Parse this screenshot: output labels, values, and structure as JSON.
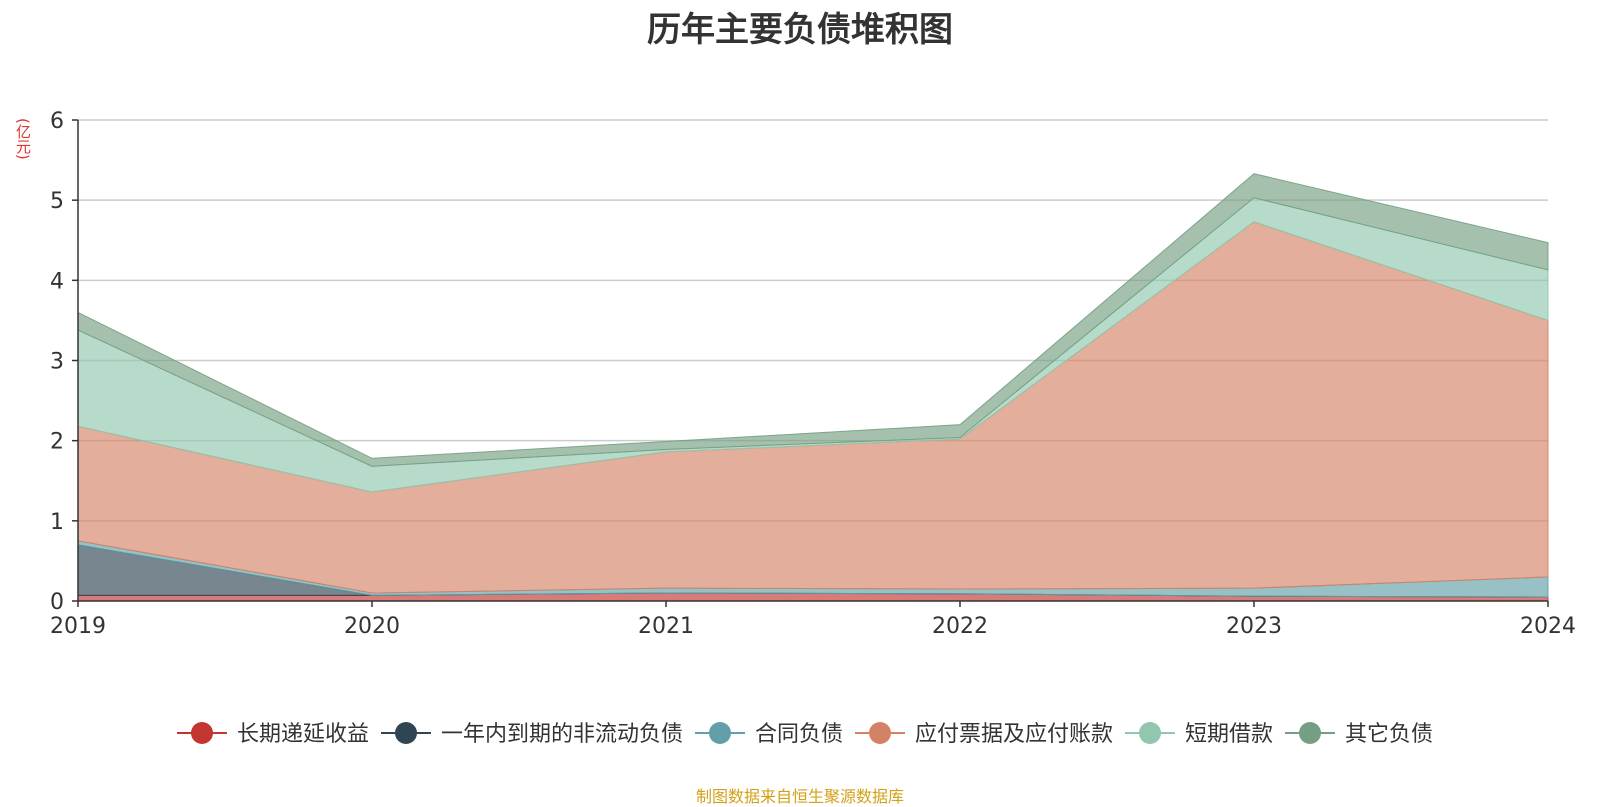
{
  "chart_data": {
    "type": "area",
    "title": "历年主要负债堆积图",
    "unit": "(亿元)",
    "source": "制图数据来自恒生聚源数据库",
    "x": [
      "2019",
      "2020",
      "2021",
      "2022",
      "2023",
      "2024"
    ],
    "ylim": [
      0,
      6
    ],
    "yticks": [
      "0",
      "1",
      "2",
      "3",
      "4",
      "5",
      "6"
    ],
    "grid": true,
    "legend_position": "bottom",
    "series": [
      {
        "name": "长期递延收益",
        "color": "#c23531",
        "values": [
          0.07,
          0.07,
          0.1,
          0.09,
          0.06,
          0.05
        ]
      },
      {
        "name": "一年内到期的非流动负债",
        "color": "#2f4554",
        "values": [
          0.63,
          0.0,
          0.0,
          0.0,
          0.0,
          0.0
        ]
      },
      {
        "name": "合同负债",
        "color": "#61a0a8",
        "values": [
          0.05,
          0.03,
          0.06,
          0.06,
          0.1,
          0.25
        ]
      },
      {
        "name": "应付票据及应付账款",
        "color": "#d48265",
        "values": [
          1.43,
          1.26,
          1.7,
          1.87,
          4.57,
          3.2
        ]
      },
      {
        "name": "短期借款",
        "color": "#91c7ae",
        "values": [
          1.2,
          0.32,
          0.03,
          0.02,
          0.3,
          0.63
        ]
      },
      {
        "name": "其它负债",
        "color": "#749f83",
        "values": [
          0.22,
          0.1,
          0.1,
          0.16,
          0.3,
          0.34
        ]
      }
    ]
  }
}
